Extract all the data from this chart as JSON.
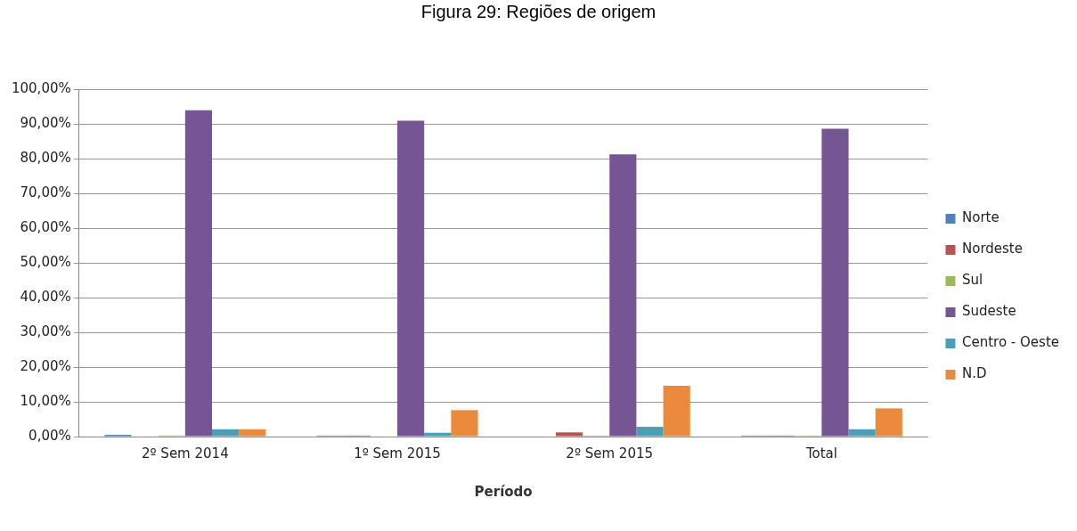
{
  "chart_data": {
    "type": "bar",
    "title": "Figura 29: Regiões de origem",
    "xlabel": "Período",
    "categories": [
      "2º Sem 2014",
      "1º Sem 2015",
      "2º Sem 2015",
      "Total"
    ],
    "series": [
      {
        "name": "Norte",
        "color": "#4f81bd",
        "values": [
          0.5,
          0.3,
          0,
          0.3
        ]
      },
      {
        "name": "Nordeste",
        "color": "#c0504d",
        "values": [
          0,
          0.3,
          1.2,
          0.3
        ]
      },
      {
        "name": "Sul",
        "color": "#9bbb59",
        "values": [
          0.3,
          0,
          0.3,
          0.3
        ]
      },
      {
        "name": "Sudeste",
        "color": "#765594",
        "values": [
          93.9,
          90.9,
          81.2,
          88.6
        ]
      },
      {
        "name": "Centro - Oeste",
        "color": "#4a9fb6",
        "values": [
          2.1,
          1.1,
          2.8,
          2.1
        ]
      },
      {
        "name": "N.D",
        "color": "#eb8a3c",
        "values": [
          2.1,
          7.6,
          14.6,
          8.1
        ]
      }
    ],
    "ylim": [
      0,
      100
    ],
    "yticks": [
      {
        "value": 0,
        "label": "0,00%"
      },
      {
        "value": 10,
        "label": "10,00%"
      },
      {
        "value": 20,
        "label": "20,00%"
      },
      {
        "value": 30,
        "label": "30,00%"
      },
      {
        "value": 40,
        "label": "40,00%"
      },
      {
        "value": 50,
        "label": "50,00%"
      },
      {
        "value": 60,
        "label": "60,00%"
      },
      {
        "value": 70,
        "label": "70,00%"
      },
      {
        "value": 80,
        "label": "80,00%"
      },
      {
        "value": 90,
        "label": "90,00%"
      },
      {
        "value": 100,
        "label": "100,00%"
      }
    ],
    "grid": "y",
    "legend": "right"
  }
}
